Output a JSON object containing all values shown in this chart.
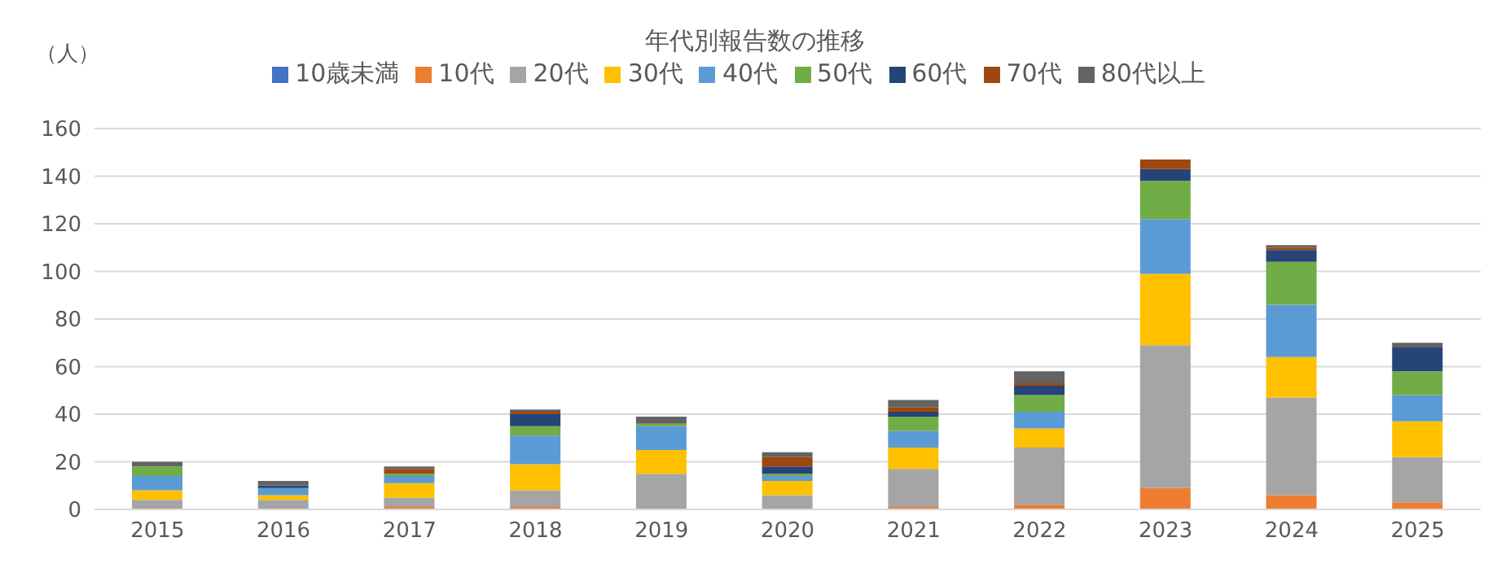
{
  "chart_data": {
    "type": "bar",
    "title": "年代別報告数の推移",
    "ylabel": "（人）",
    "stacked": true,
    "categories": [
      "2015",
      "2016",
      "2017",
      "2018",
      "2019",
      "2020",
      "2021",
      "2022",
      "2023",
      "2024",
      "2025"
    ],
    "series": [
      {
        "name": "10歳未満",
        "color": "#4472c4",
        "values": [
          0,
          0,
          0,
          0,
          0,
          0,
          0,
          0,
          0,
          0,
          0
        ]
      },
      {
        "name": "10代",
        "color": "#ed7d31",
        "values": [
          0,
          0,
          1,
          1,
          0,
          0,
          1,
          2,
          9,
          6,
          3
        ]
      },
      {
        "name": "20代",
        "color": "#a5a5a5",
        "values": [
          4,
          4,
          4,
          7,
          15,
          6,
          16,
          24,
          60,
          41,
          19
        ]
      },
      {
        "name": "30代",
        "color": "#ffc000",
        "values": [
          4,
          2,
          6,
          11,
          10,
          6,
          9,
          8,
          30,
          17,
          15
        ]
      },
      {
        "name": "40代",
        "color": "#5b9bd5",
        "values": [
          6,
          3,
          3,
          12,
          10,
          2,
          7,
          7,
          23,
          22,
          11
        ]
      },
      {
        "name": "50代",
        "color": "#70ad47",
        "values": [
          4,
          0,
          1,
          4,
          1,
          1,
          6,
          7,
          16,
          18,
          10
        ]
      },
      {
        "name": "60代",
        "color": "#264478",
        "values": [
          0,
          1,
          0,
          5,
          0,
          3,
          2,
          4,
          5,
          5,
          10
        ]
      },
      {
        "name": "70代",
        "color": "#9e480e",
        "values": [
          0,
          0,
          2,
          1,
          0,
          4,
          2,
          1,
          4,
          1,
          0
        ]
      },
      {
        "name": "80代以上",
        "color": "#636363",
        "values": [
          2,
          2,
          1,
          1,
          3,
          2,
          3,
          5,
          0,
          1,
          2
        ]
      }
    ],
    "ylim": [
      0,
      160
    ],
    "yticks": [
      0,
      20,
      40,
      60,
      80,
      100,
      120,
      140,
      160
    ],
    "grid": "y",
    "legend": "top"
  }
}
